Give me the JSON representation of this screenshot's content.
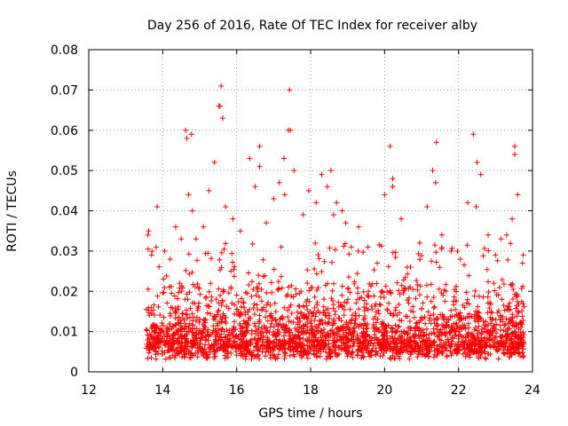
{
  "chart_data": {
    "type": "scatter",
    "title": "Day 256 of 2016, Rate Of TEC Index for receiver alby",
    "xlabel": "GPS time / hours",
    "ylabel": "ROTI / TECUs",
    "xlim": [
      12,
      24
    ],
    "ylim": [
      0,
      0.08
    ],
    "xticks": [
      "12",
      "14",
      "16",
      "18",
      "20",
      "22",
      "24"
    ],
    "yticks": [
      "0",
      "0.01",
      "0.02",
      "0.03",
      "0.04",
      "0.05",
      "0.06",
      "0.07",
      "0.08"
    ],
    "grid": true,
    "marker": "+",
    "series": [
      {
        "name": "ROTI",
        "color": "#ff0000",
        "x": [
          13.6,
          13.7,
          13.85,
          14.05,
          14.2,
          14.35,
          14.5,
          14.62,
          14.7,
          14.8,
          14.9,
          15.1,
          15.25,
          15.4,
          15.52,
          15.58,
          15.62,
          15.7,
          15.9,
          16.1,
          16.35,
          16.5,
          16.62,
          16.8,
          17.0,
          17.15,
          17.28,
          17.4,
          17.55,
          17.8,
          17.95,
          18.15,
          18.3,
          18.45,
          18.55,
          18.7,
          18.85,
          18.95,
          19.1,
          19.3,
          19.55,
          19.8,
          20.0,
          20.15,
          20.22,
          20.45,
          20.7,
          20.95,
          21.15,
          21.3,
          21.4,
          21.55,
          21.8,
          22.05,
          22.25,
          22.4,
          22.5,
          22.6,
          22.8,
          23.0,
          23.15,
          23.3,
          23.45,
          23.52,
          23.6,
          23.75,
          14.65,
          14.78,
          15.55,
          17.43,
          17.45,
          17.3,
          21.38,
          22.48,
          23.52,
          20.22,
          16.62,
          18.62,
          13.62,
          23.73
        ],
        "y": [
          0.034,
          0.029,
          0.041,
          0.03,
          0.028,
          0.036,
          0.033,
          0.06,
          0.044,
          0.04,
          0.033,
          0.036,
          0.045,
          0.052,
          0.066,
          0.071,
          0.063,
          0.041,
          0.038,
          0.035,
          0.053,
          0.046,
          0.056,
          0.037,
          0.043,
          0.047,
          0.053,
          0.06,
          0.05,
          0.039,
          0.045,
          0.042,
          0.049,
          0.046,
          0.05,
          0.042,
          0.04,
          0.037,
          0.031,
          0.036,
          0.031,
          0.027,
          0.044,
          0.056,
          0.046,
          0.038,
          0.026,
          0.032,
          0.041,
          0.05,
          0.057,
          0.034,
          0.03,
          0.028,
          0.042,
          0.059,
          0.052,
          0.049,
          0.034,
          0.029,
          0.033,
          0.034,
          0.038,
          0.056,
          0.044,
          0.029,
          0.058,
          0.059,
          0.066,
          0.07,
          0.06,
          0.044,
          0.047,
          0.041,
          0.054,
          0.048,
          0.051,
          0.039,
          0.035,
          0.027
        ]
      }
    ]
  }
}
